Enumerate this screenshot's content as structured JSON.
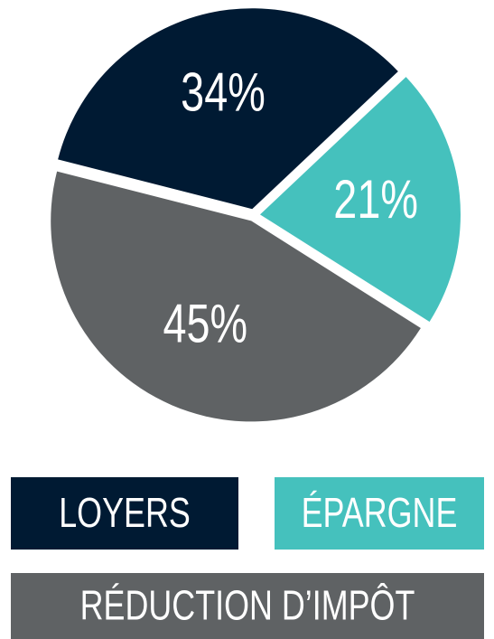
{
  "chart_data": {
    "type": "pie",
    "categories": [
      "LOYERS",
      "ÉPARGNE",
      "RÉDUCTION D’IMPÔT"
    ],
    "values": [
      34,
      21,
      45
    ],
    "value_labels": [
      "34%",
      "21%",
      "45%"
    ],
    "colors": [
      "#001a33",
      "#45c1bd",
      "#5f6264"
    ]
  }
}
